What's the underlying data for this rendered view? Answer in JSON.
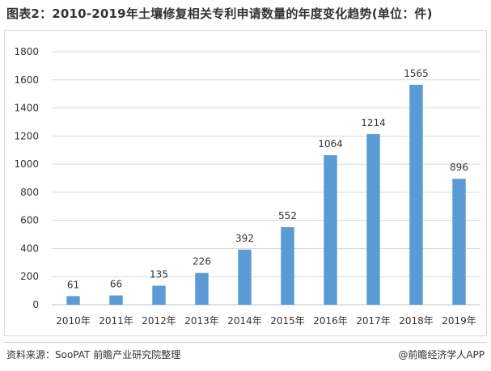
{
  "title": "图表2：2010-2019年土壤修复相关专利申请数量的年度变化趋势(单位：件)",
  "source": "资料来源：SooPAT 前瞻产业研究院整理",
  "credit": "@前瞻经济学人APP",
  "colors": {
    "bar": "#5b9bd5",
    "grid": "#d9d9d9",
    "axis": "#bfbfbf",
    "text": "#333333"
  },
  "chart_data": {
    "type": "bar",
    "categories": [
      "2010年",
      "2011年",
      "2012年",
      "2013年",
      "2014年",
      "2015年",
      "2016年",
      "2017年",
      "2018年",
      "2019年"
    ],
    "values": [
      61,
      66,
      135,
      226,
      392,
      552,
      1064,
      1214,
      1565,
      896
    ],
    "title": "",
    "xlabel": "",
    "ylabel": "",
    "ylim": [
      0,
      1800
    ],
    "yticks": [
      0,
      200,
      400,
      600,
      800,
      1000,
      1200,
      1400,
      1600,
      1800
    ],
    "grid": true,
    "data_labels": true,
    "legend": "none"
  }
}
